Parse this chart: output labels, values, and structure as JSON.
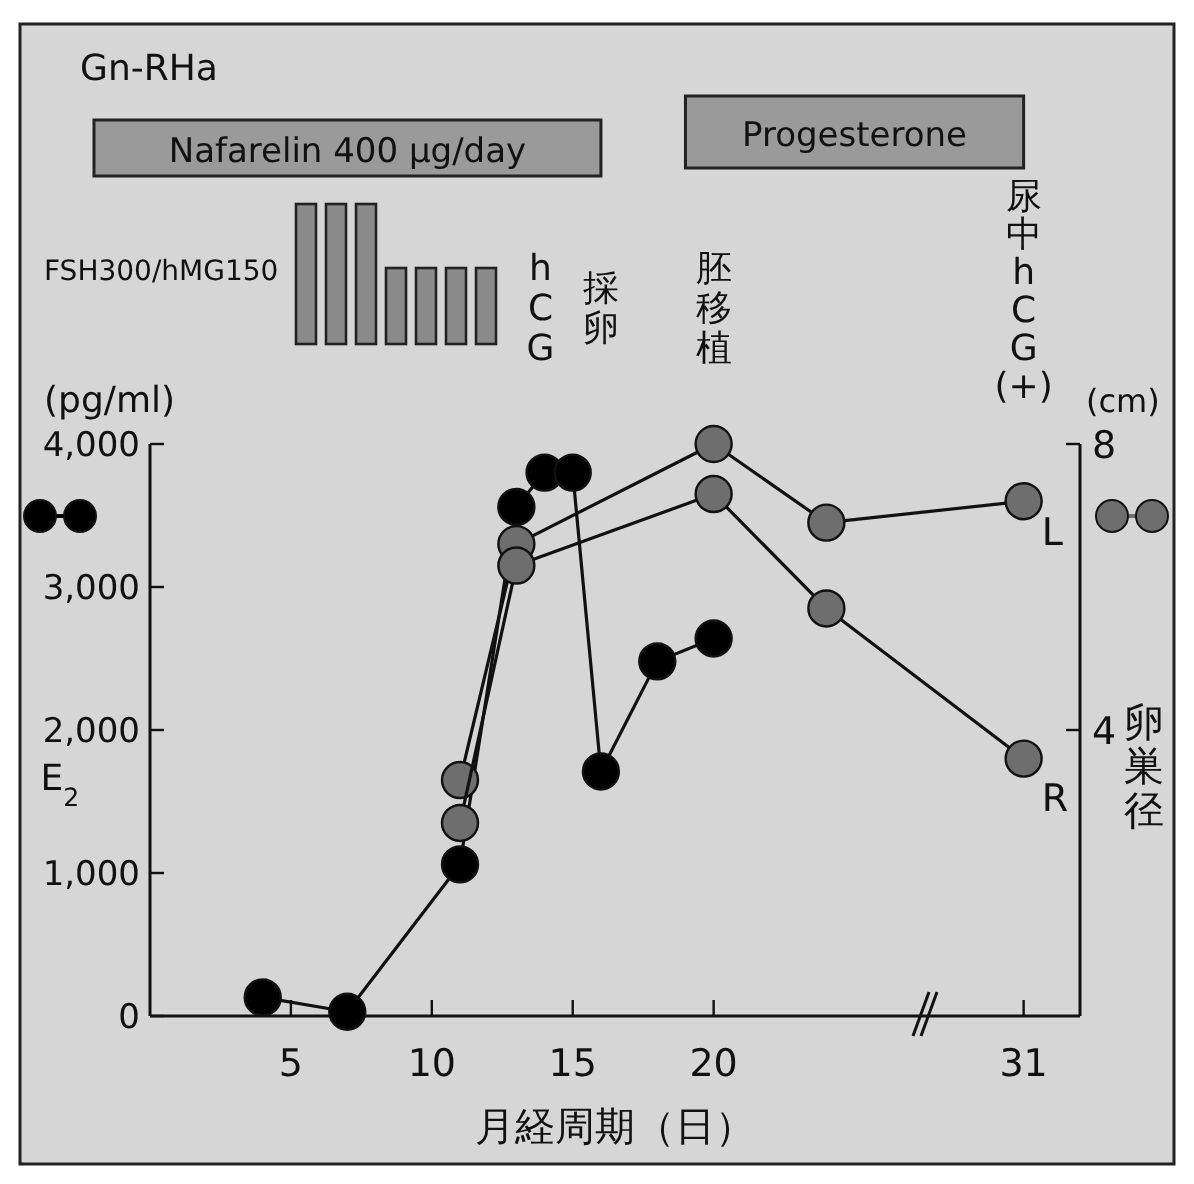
{
  "chart_data": {
    "type": "line",
    "xlabel": "月経周期（日）",
    "ylabel": "E$_{2}$",
    "y2label": "卵巣径",
    "marker": "circle",
    "line_style": "solid",
    "grid": false,
    "xlim": [
      0,
      33
    ],
    "xticks": [
      5,
      10,
      15,
      20,
      31
    ],
    "ylim": [
      0,
      4000
    ],
    "yticks": [
      0,
      {
        "value": 1000,
        "label": "1,000"
      },
      {
        "value": 2000,
        "label": "2,000"
      },
      {
        "value": 3000,
        "label": "3,000"
      },
      {
        "value": 4000,
        "label": "4,000"
      }
    ],
    "y2lim": [
      0,
      8
    ],
    "y2ticks": [
      4,
      8
    ],
    "series": [
      {
        "color": "#000000",
        "x": [
          4,
          7,
          11,
          13,
          14,
          15,
          16,
          18,
          20
        ],
        "values": [
          130,
          30,
          1060,
          3560,
          3800,
          3800,
          1710,
          2480,
          2640
        ]
      },
      {
        "name": "L",
        "color": "#6e6e6e",
        "axis": "y2",
        "x": [
          11,
          13,
          20,
          24,
          31
        ],
        "values": [
          3.3,
          6.6,
          8.0,
          6.9,
          7.2
        ]
      },
      {
        "name": "R",
        "color": "#6e6e6e",
        "axis": "y2",
        "x": [
          11,
          13,
          20,
          24,
          31
        ],
        "values": [
          2.7,
          6.3,
          7.3,
          5.7,
          3.6
        ]
      }
    ],
    "annotations": [
      "Gn-RHa",
      "Nafarelin 400 μg/day",
      "Progesterone",
      "FSH300/hMG150",
      "hCG",
      "採卵",
      "胚移植",
      "尿中hCG(+)",
      "(pg/ml)",
      "(cm)"
    ]
  }
}
